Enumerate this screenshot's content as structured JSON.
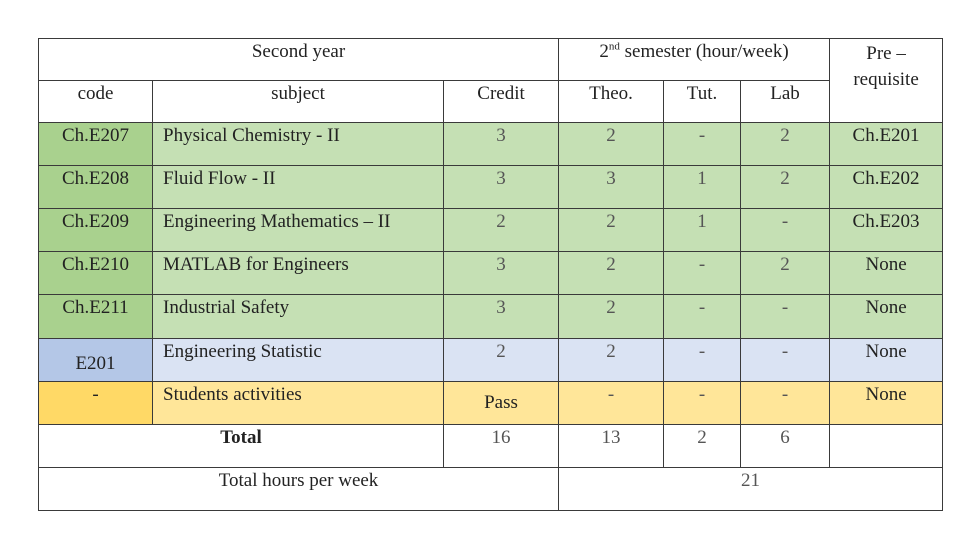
{
  "header": {
    "year_label": "Second  year",
    "semester_sup": "nd",
    "semester_num": "2",
    "semester_rest": " semester (hour/week)",
    "prereq_line1": "Pre –",
    "prereq_line2": "requisite",
    "col_code": "code",
    "col_subject": "subject",
    "col_credit": "Credit",
    "col_theo": "Theo.",
    "col_tut": "Tut.",
    "col_lab": "Lab"
  },
  "rows": [
    {
      "code": "Ch.E207",
      "subject": "Physical Chemistry - II",
      "credit": "3",
      "theo": "2",
      "tut": "-",
      "lab": "2",
      "prereq": "Ch.E201"
    },
    {
      "code": "Ch.E208",
      "subject": "Fluid Flow - II",
      "credit": "3",
      "theo": "3",
      "tut": "1",
      "lab": "2",
      "prereq": "Ch.E202"
    },
    {
      "code": "Ch.E209",
      "subject": "Engineering Mathematics – II",
      "credit": "2",
      "theo": "2",
      "tut": "1",
      "lab": "-",
      "prereq": "Ch.E203"
    },
    {
      "code": "Ch.E210",
      "subject": "MATLAB for Engineers",
      "credit": "3",
      "theo": "2",
      "tut": "-",
      "lab": "2",
      "prereq": "None"
    },
    {
      "code": "Ch.E211",
      "subject": "Industrial Safety",
      "credit": "3",
      "theo": "2",
      "tut": "-",
      "lab": "-",
      "prereq": "None"
    },
    {
      "code": "E201",
      "subject": "Engineering Statistic",
      "credit": "2",
      "theo": "2",
      "tut": "-",
      "lab": "-",
      "prereq": "None"
    },
    {
      "code": "-",
      "subject": "Students activities",
      "credit": "Pass",
      "theo": "-",
      "tut": "-",
      "lab": "-",
      "prereq": "None"
    }
  ],
  "totals": {
    "label": "Total",
    "credit": "16",
    "theo": "13",
    "tut": "2",
    "lab": "6"
  },
  "weekly": {
    "label": "Total hours per week",
    "value": "21"
  },
  "colors": {
    "green_dark": "#a9d18e",
    "green_light": "#c5e0b4",
    "blue_dark": "#b4c7e7",
    "blue_light": "#dae3f3",
    "yellow_dark": "#ffd966",
    "yellow_light": "#ffe699"
  }
}
